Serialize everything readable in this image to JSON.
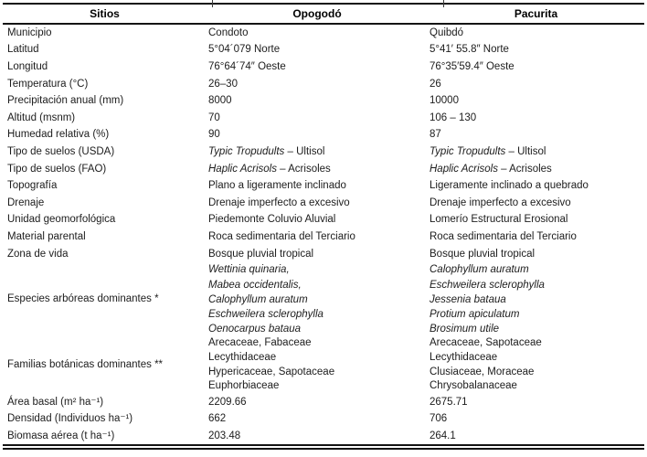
{
  "colors": {
    "text": "#1c1c1c",
    "rule": "#141414",
    "background": "#ffffff"
  },
  "table": {
    "headers": [
      "Sitios",
      "Opogodó",
      "Pacurita"
    ],
    "rows": [
      {
        "label": "Municipio",
        "opogodo": "Condoto",
        "pacurita": "Quibdó"
      },
      {
        "label": "Latitud",
        "opogodo": "5°04´079 Norte",
        "pacurita": "5°41′ 55.8″ Norte"
      },
      {
        "label": "Longitud",
        "opogodo": "76°64´74″ Oeste",
        "pacurita": "76°35′59.4″ Oeste"
      },
      {
        "label": "Temperatura (°C)",
        "opogodo": "26–30",
        "pacurita": "26"
      },
      {
        "label": "Precipitación anual (mm)",
        "opogodo": "8000",
        "pacurita": "10000"
      },
      {
        "label": "Altitud (msnm)",
        "opogodo": "70",
        "pacurita": "106 – 130"
      },
      {
        "label": "Humedad relativa (%)",
        "opogodo": "90",
        "pacurita": "87"
      },
      {
        "label": "Tipo de suelos (USDA)",
        "opogodo": {
          "parts": [
            {
              "t": "Typic Tropudults",
              "i": true
            },
            {
              "t": " – Ultisol"
            }
          ]
        },
        "pacurita": {
          "parts": [
            {
              "t": "Typic Tropudults",
              "i": true
            },
            {
              "t": " – Ultisol"
            }
          ]
        }
      },
      {
        "label": "Tipo de suelos (FAO)",
        "opogodo": {
          "parts": [
            {
              "t": "Haplic Acrisols",
              "i": true
            },
            {
              "t": " – Acrisoles"
            }
          ]
        },
        "pacurita": {
          "parts": [
            {
              "t": "Haplic Acrisols",
              "i": true
            },
            {
              "t": " – Acrisoles"
            }
          ]
        }
      },
      {
        "label": "Topografía",
        "opogodo": "Plano a ligeramente inclinado",
        "pacurita": "Ligeramente inclinado a quebrado"
      },
      {
        "label": "Drenaje",
        "opogodo": "Drenaje imperfecto a excesivo",
        "pacurita": "Drenaje imperfecto a excesivo"
      },
      {
        "label": "Unidad geomorfológica",
        "opogodo": "Piedemonte Coluvio Aluvial",
        "pacurita": "Lomerío Estructural Erosional"
      },
      {
        "label": "Material parental",
        "opogodo": "Roca sedimentaria del Terciario",
        "pacurita": "Roca sedimentaria del Terciario"
      },
      {
        "label": "Zona de vida",
        "opogodo": "Bosque pluvial tropical",
        "pacurita": "Bosque pluvial tropical"
      },
      {
        "label": "Especies arbóreas dominantes *",
        "kind": "species",
        "opogodo": {
          "italic": true,
          "lines": [
            "Wettinia quinaria,",
            "Mabea occidentalis,",
            "Calophyllum auratum",
            "Eschweilera sclerophylla",
            "Oenocarpus bataua"
          ]
        },
        "pacurita": {
          "italic": true,
          "lines": [
            "Calophyllum auratum",
            "Eschweilera sclerophylla",
            "Jessenia bataua",
            "Protium apiculatum",
            "Brosimum utile"
          ]
        }
      },
      {
        "label": "Familias botánicas dominantes **",
        "kind": "families",
        "opogodo": {
          "italic": false,
          "lines": [
            "Arecaceae, Fabaceae",
            "Lecythidaceae",
            "Hypericaceae, Sapotaceae",
            "Euphorbiaceae"
          ]
        },
        "pacurita": {
          "italic": false,
          "lines": [
            "Arecaceae, Sapotaceae",
            "Lecythidaceae",
            "Clusiaceae, Moraceae",
            "Chrysobalanaceae"
          ]
        }
      },
      {
        "label": "Área basal (m² ha⁻¹)",
        "opogodo": "2209.66",
        "pacurita": "2675.71"
      },
      {
        "label": "Densidad (Individuos ha⁻¹)",
        "opogodo": "662",
        "pacurita": "706"
      },
      {
        "label": "Biomasa aérea (t ha⁻¹)",
        "opogodo": "203.48",
        "pacurita": "264.1"
      }
    ]
  }
}
